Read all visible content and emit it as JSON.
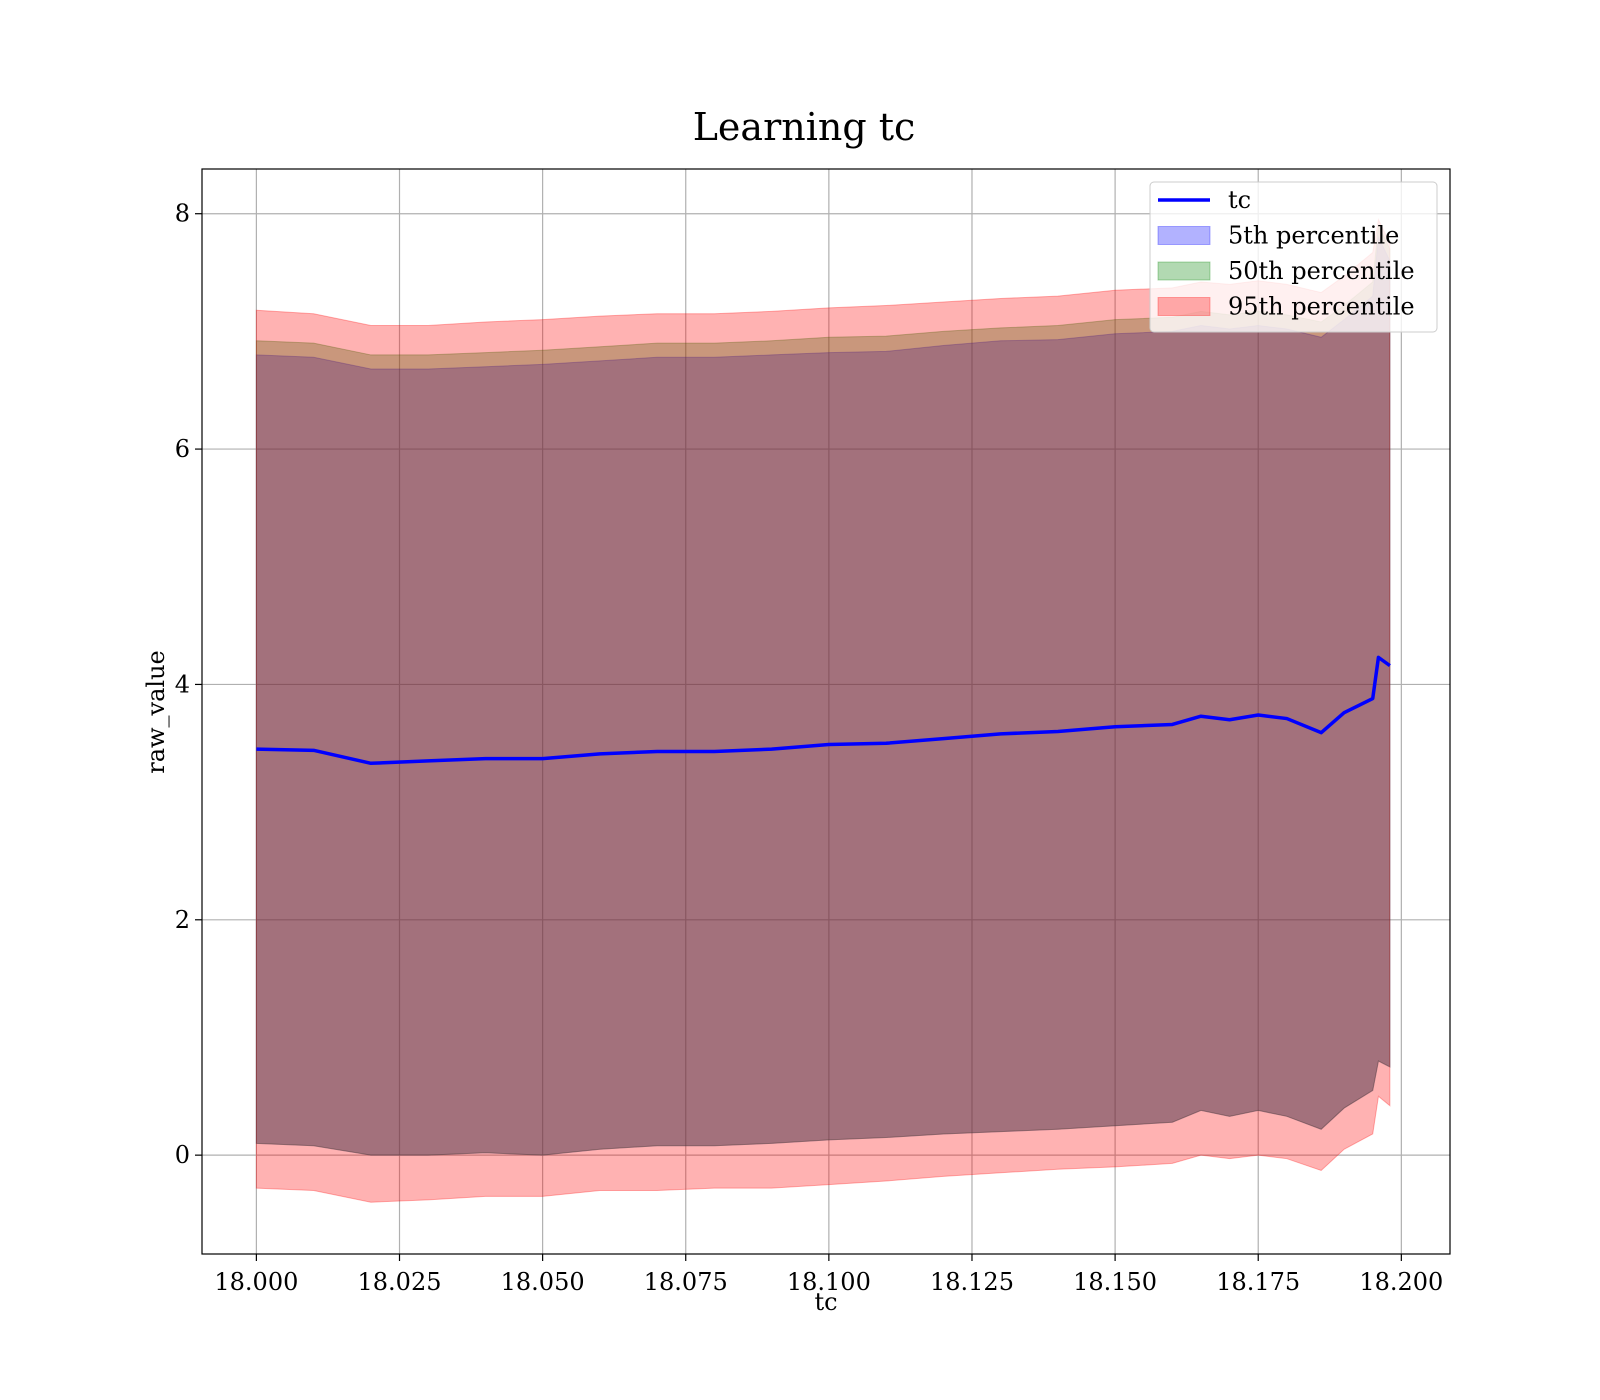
{
  "chart_data": {
    "type": "area",
    "title": "Learning tc",
    "xlabel": "tc",
    "ylabel": "raw_value",
    "xlim": [
      17.9905,
      18.2085
    ],
    "ylim": [
      -0.84,
      8.38
    ],
    "x_ticks": [
      18.0,
      18.025,
      18.05,
      18.075,
      18.1,
      18.125,
      18.15,
      18.175,
      18.2
    ],
    "x_tick_labels": [
      "18.000",
      "18.025",
      "18.050",
      "18.075",
      "18.100",
      "18.125",
      "18.150",
      "18.175",
      "18.200"
    ],
    "y_ticks": [
      0,
      2,
      4,
      6,
      8
    ],
    "y_tick_labels": [
      "0",
      "2",
      "4",
      "6",
      "8"
    ],
    "grid": true,
    "legend_position": "top-right",
    "x": [
      18.0,
      18.01,
      18.02,
      18.03,
      18.04,
      18.05,
      18.06,
      18.07,
      18.08,
      18.09,
      18.1,
      18.11,
      18.12,
      18.13,
      18.14,
      18.15,
      18.16,
      18.165,
      18.17,
      18.175,
      18.18,
      18.186,
      18.19,
      18.195,
      18.196,
      18.198
    ],
    "series": [
      {
        "name": "tc",
        "kind": "line",
        "color": "#0000ff",
        "values": [
          3.45,
          3.44,
          3.33,
          3.35,
          3.37,
          3.37,
          3.41,
          3.43,
          3.43,
          3.45,
          3.49,
          3.5,
          3.54,
          3.58,
          3.6,
          3.64,
          3.66,
          3.73,
          3.7,
          3.74,
          3.71,
          3.59,
          3.76,
          3.88,
          4.23,
          4.16
        ]
      },
      {
        "name": "5th percentile",
        "kind": "band",
        "color": "#0000ff",
        "lower": [
          0.1,
          0.08,
          0.0,
          0.0,
          0.02,
          0.0,
          0.05,
          0.08,
          0.08,
          0.1,
          0.13,
          0.15,
          0.18,
          0.2,
          0.22,
          0.25,
          0.28,
          0.38,
          0.33,
          0.38,
          0.33,
          0.22,
          0.4,
          0.55,
          0.8,
          0.75
        ],
        "upper": [
          6.8,
          6.78,
          6.68,
          6.68,
          6.7,
          6.72,
          6.75,
          6.78,
          6.78,
          6.8,
          6.82,
          6.83,
          6.88,
          6.92,
          6.93,
          6.98,
          7.0,
          7.05,
          7.02,
          7.05,
          7.02,
          6.95,
          7.1,
          7.3,
          7.8,
          7.6
        ]
      },
      {
        "name": "50th percentile",
        "kind": "band",
        "color": "#008000",
        "lower": [
          0.1,
          0.08,
          0.0,
          0.0,
          0.02,
          0.0,
          0.05,
          0.08,
          0.08,
          0.1,
          0.13,
          0.15,
          0.18,
          0.2,
          0.22,
          0.25,
          0.28,
          0.38,
          0.33,
          0.38,
          0.33,
          0.22,
          0.4,
          0.55,
          0.8,
          0.75
        ],
        "upper": [
          6.92,
          6.9,
          6.8,
          6.8,
          6.82,
          6.84,
          6.87,
          6.9,
          6.9,
          6.92,
          6.95,
          6.96,
          7.0,
          7.03,
          7.05,
          7.1,
          7.12,
          7.17,
          7.14,
          7.17,
          7.14,
          7.08,
          7.22,
          7.42,
          7.9,
          7.7
        ]
      },
      {
        "name": "95th percentile",
        "kind": "band",
        "color": "#ff0000",
        "lower": [
          -0.28,
          -0.3,
          -0.4,
          -0.38,
          -0.35,
          -0.35,
          -0.3,
          -0.3,
          -0.28,
          -0.28,
          -0.25,
          -0.22,
          -0.18,
          -0.15,
          -0.12,
          -0.1,
          -0.07,
          0.0,
          -0.03,
          0.0,
          -0.03,
          -0.13,
          0.05,
          0.18,
          0.5,
          0.42
        ],
        "upper": [
          7.18,
          7.15,
          7.05,
          7.05,
          7.08,
          7.1,
          7.13,
          7.15,
          7.15,
          7.17,
          7.2,
          7.22,
          7.25,
          7.28,
          7.3,
          7.35,
          7.37,
          7.42,
          7.4,
          7.43,
          7.4,
          7.33,
          7.47,
          7.67,
          7.95,
          7.75
        ]
      }
    ]
  }
}
